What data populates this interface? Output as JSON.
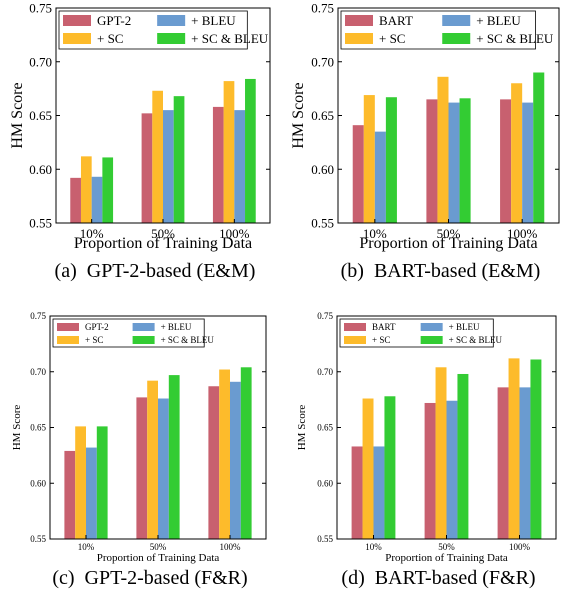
{
  "colors": {
    "red": "#c8606f",
    "yellow": "#fdbb2b",
    "blue": "#6a9bd0",
    "green": "#33cc33"
  },
  "chart_data": [
    {
      "type": "bar",
      "caption": "(a)  GPT-2-based (E&M)",
      "xlabel": "Proportion of Training Data",
      "ylabel": "HM Score",
      "categories": [
        "10%",
        "50%",
        "100%"
      ],
      "ylim": [
        0.55,
        0.75
      ],
      "yticks": [
        "0.55",
        "0.60",
        "0.65",
        "0.70",
        "0.75"
      ],
      "legend_placement": "top-left",
      "series": [
        {
          "name": "GPT-2",
          "color": "#c8606f",
          "values": [
            0.592,
            0.652,
            0.658
          ]
        },
        {
          "name": "+ SC",
          "color": "#fdbb2b",
          "values": [
            0.612,
            0.673,
            0.682
          ]
        },
        {
          "name": "+ BLEU",
          "color": "#6a9bd0",
          "values": [
            0.593,
            0.655,
            0.655
          ]
        },
        {
          "name": "+ SC & BLEU",
          "color": "#33cc33",
          "values": [
            0.611,
            0.668,
            0.684
          ]
        }
      ]
    },
    {
      "type": "bar",
      "caption": "(b)  BART-based (E&M)",
      "xlabel": "Proportion of Training Data",
      "ylabel": "HM Score",
      "categories": [
        "10%",
        "50%",
        "100%"
      ],
      "ylim": [
        0.55,
        0.75
      ],
      "yticks": [
        "0.55",
        "0.60",
        "0.65",
        "0.70",
        "0.75"
      ],
      "legend_placement": "top-left",
      "series": [
        {
          "name": "BART",
          "color": "#c8606f",
          "values": [
            0.641,
            0.665,
            0.665
          ]
        },
        {
          "name": "+ SC",
          "color": "#fdbb2b",
          "values": [
            0.669,
            0.686,
            0.68
          ]
        },
        {
          "name": "+ BLEU",
          "color": "#6a9bd0",
          "values": [
            0.635,
            0.662,
            0.662
          ]
        },
        {
          "name": "+ SC & BLEU",
          "color": "#33cc33",
          "values": [
            0.667,
            0.666,
            0.69
          ]
        }
      ]
    },
    {
      "type": "bar",
      "caption": "(c)  GPT-2-based (F&R)",
      "xlabel": "Proportion of Training Data",
      "ylabel": "HM Score",
      "categories": [
        "10%",
        "50%",
        "100%"
      ],
      "ylim": [
        0.55,
        0.75
      ],
      "yticks": [
        "0.55",
        "0.60",
        "0.65",
        "0.70",
        "0.75"
      ],
      "legend_placement": "top-left",
      "series": [
        {
          "name": "GPT-2",
          "color": "#c8606f",
          "values": [
            0.629,
            0.677,
            0.687
          ]
        },
        {
          "name": "+ SC",
          "color": "#fdbb2b",
          "values": [
            0.651,
            0.692,
            0.702
          ]
        },
        {
          "name": "+ BLEU",
          "color": "#6a9bd0",
          "values": [
            0.632,
            0.676,
            0.691
          ]
        },
        {
          "name": "+ SC & BLEU",
          "color": "#33cc33",
          "values": [
            0.651,
            0.697,
            0.704
          ]
        }
      ]
    },
    {
      "type": "bar",
      "caption": "(d)  BART-based (F&R)",
      "xlabel": "Proportion of Training Data",
      "ylabel": "HM Score",
      "categories": [
        "10%",
        "50%",
        "100%"
      ],
      "ylim": [
        0.55,
        0.75
      ],
      "yticks": [
        "0.55",
        "0.60",
        "0.65",
        "0.70",
        "0.75"
      ],
      "legend_placement": "top-left",
      "series": [
        {
          "name": "BART",
          "color": "#c8606f",
          "values": [
            0.633,
            0.672,
            0.686
          ]
        },
        {
          "name": "+ SC",
          "color": "#fdbb2b",
          "values": [
            0.676,
            0.704,
            0.712
          ]
        },
        {
          "name": "+ BLEU",
          "color": "#6a9bd0",
          "values": [
            0.633,
            0.674,
            0.686
          ]
        },
        {
          "name": "+ SC & BLEU",
          "color": "#33cc33",
          "values": [
            0.678,
            0.698,
            0.711
          ]
        }
      ]
    }
  ]
}
